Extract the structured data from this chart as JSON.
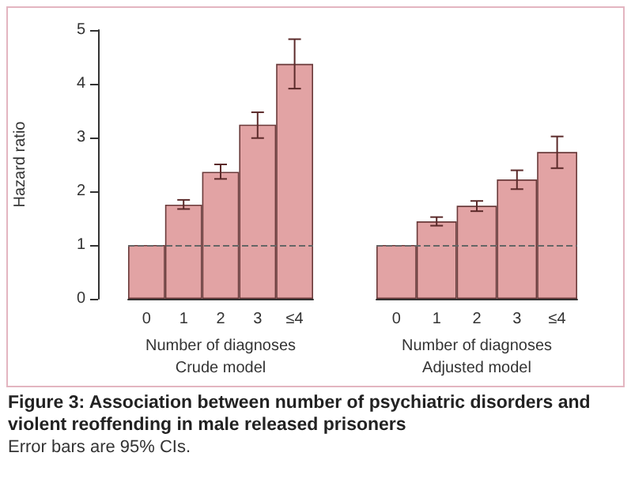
{
  "chart_data": [
    {
      "type": "bar",
      "title": "Figure 3: Association between number of psychiatric disorders and violent reoffending in male released prisoners",
      "annotations": [
        "Error bars are 95% CIs."
      ],
      "xlabel": "Number of diagnoses\nCrude model",
      "ylabel": "Hazard ratio",
      "categories": [
        "0",
        "1",
        "2",
        "3",
        "≤4"
      ],
      "color": "#e2a3a4",
      "values": [
        1,
        1.75,
        2.36,
        3.24,
        4.37
      ],
      "errors": [
        null,
        [
          1.67,
          1.84
        ],
        [
          2.23,
          2.5
        ],
        [
          2.99,
          3.47
        ],
        [
          3.91,
          4.83
        ]
      ],
      "ylim": [
        0,
        5
      ],
      "yticks": [
        0,
        1,
        2,
        3,
        4,
        5
      ],
      "ref_lines": [
        {
          "axis": "y",
          "value": 1,
          "line_style": "dashed",
          "color": "#666666"
        }
      ]
    },
    {
      "type": "bar",
      "xlabel": "Number of diagnoses\nAdjusted model",
      "categories": [
        "0",
        "1",
        "2",
        "3",
        "≤4"
      ],
      "color": "#e2a3a4",
      "values": [
        1,
        1.44,
        1.73,
        2.22,
        2.73
      ],
      "errors": [
        null,
        [
          1.36,
          1.52
        ],
        [
          1.63,
          1.82
        ],
        [
          2.04,
          2.39
        ],
        [
          2.43,
          3.02
        ]
      ],
      "ylim": [
        0,
        5
      ],
      "yticks": [
        0,
        1,
        2,
        3,
        4,
        5
      ],
      "tick_labels": "x",
      "ref_lines": [
        {
          "axis": "y",
          "value": 1,
          "line_style": "dashed",
          "color": "#666666"
        }
      ]
    }
  ]
}
